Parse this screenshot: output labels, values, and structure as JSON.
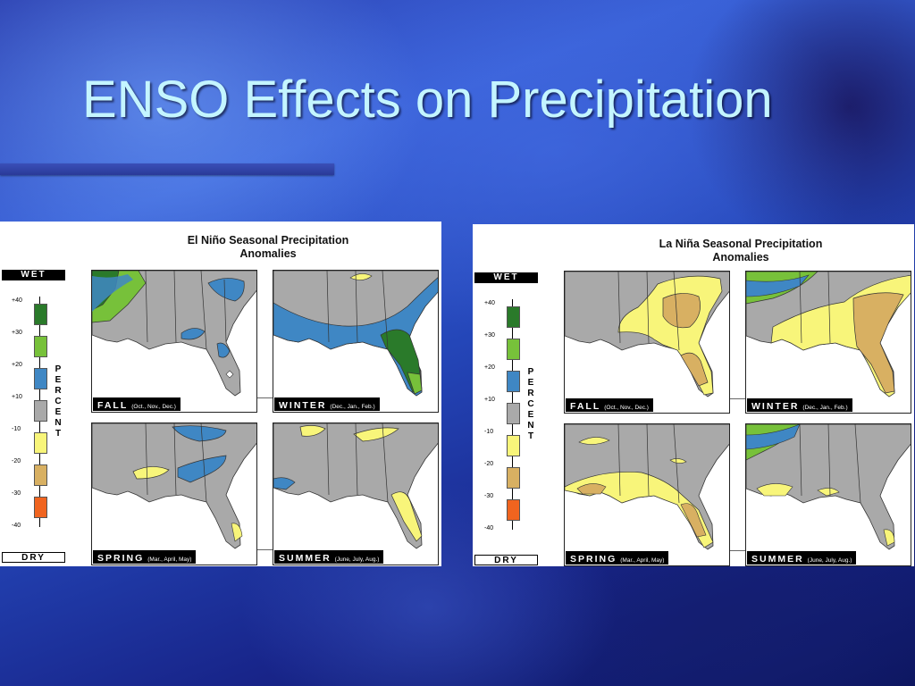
{
  "slide": {
    "title": "ENSO Effects on Precipitation"
  },
  "legend": {
    "wet_label": "WET",
    "dry_label": "DRY",
    "axis_word": "PERCENT",
    "ticks": [
      "+40",
      "+30",
      "+20",
      "+10",
      "-10",
      "-20",
      "-30",
      "-40"
    ],
    "colors": [
      "#2a7a2a",
      "#77c13a",
      "#3f87c4",
      "#a9a9a9",
      "#f8f57a",
      "#d8b062",
      "#f0641f"
    ]
  },
  "panels": [
    {
      "title_line1": "El Niño Seasonal Precipitation",
      "title_line2": "Anomalies",
      "maps": [
        {
          "season": "FALL",
          "months": "(Oct., Nov., Dec.)"
        },
        {
          "season": "WINTER",
          "months": "(Dec., Jan., Feb.)"
        },
        {
          "season": "SPRING",
          "months": "(Mar., April, May)"
        },
        {
          "season": "SUMMER",
          "months": "(June, July, Aug.)"
        }
      ]
    },
    {
      "title_line1": "La Niña Seasonal Precipitation",
      "title_line2": "Anomalies",
      "maps": [
        {
          "season": "FALL",
          "months": "(Oct., Nov., Dec.)"
        },
        {
          "season": "WINTER",
          "months": "(Dec., Jan., Feb.)"
        },
        {
          "season": "SPRING",
          "months": "(Mar., April, May)"
        },
        {
          "season": "SUMMER",
          "months": "(June, July, Aug.)"
        }
      ]
    }
  ]
}
